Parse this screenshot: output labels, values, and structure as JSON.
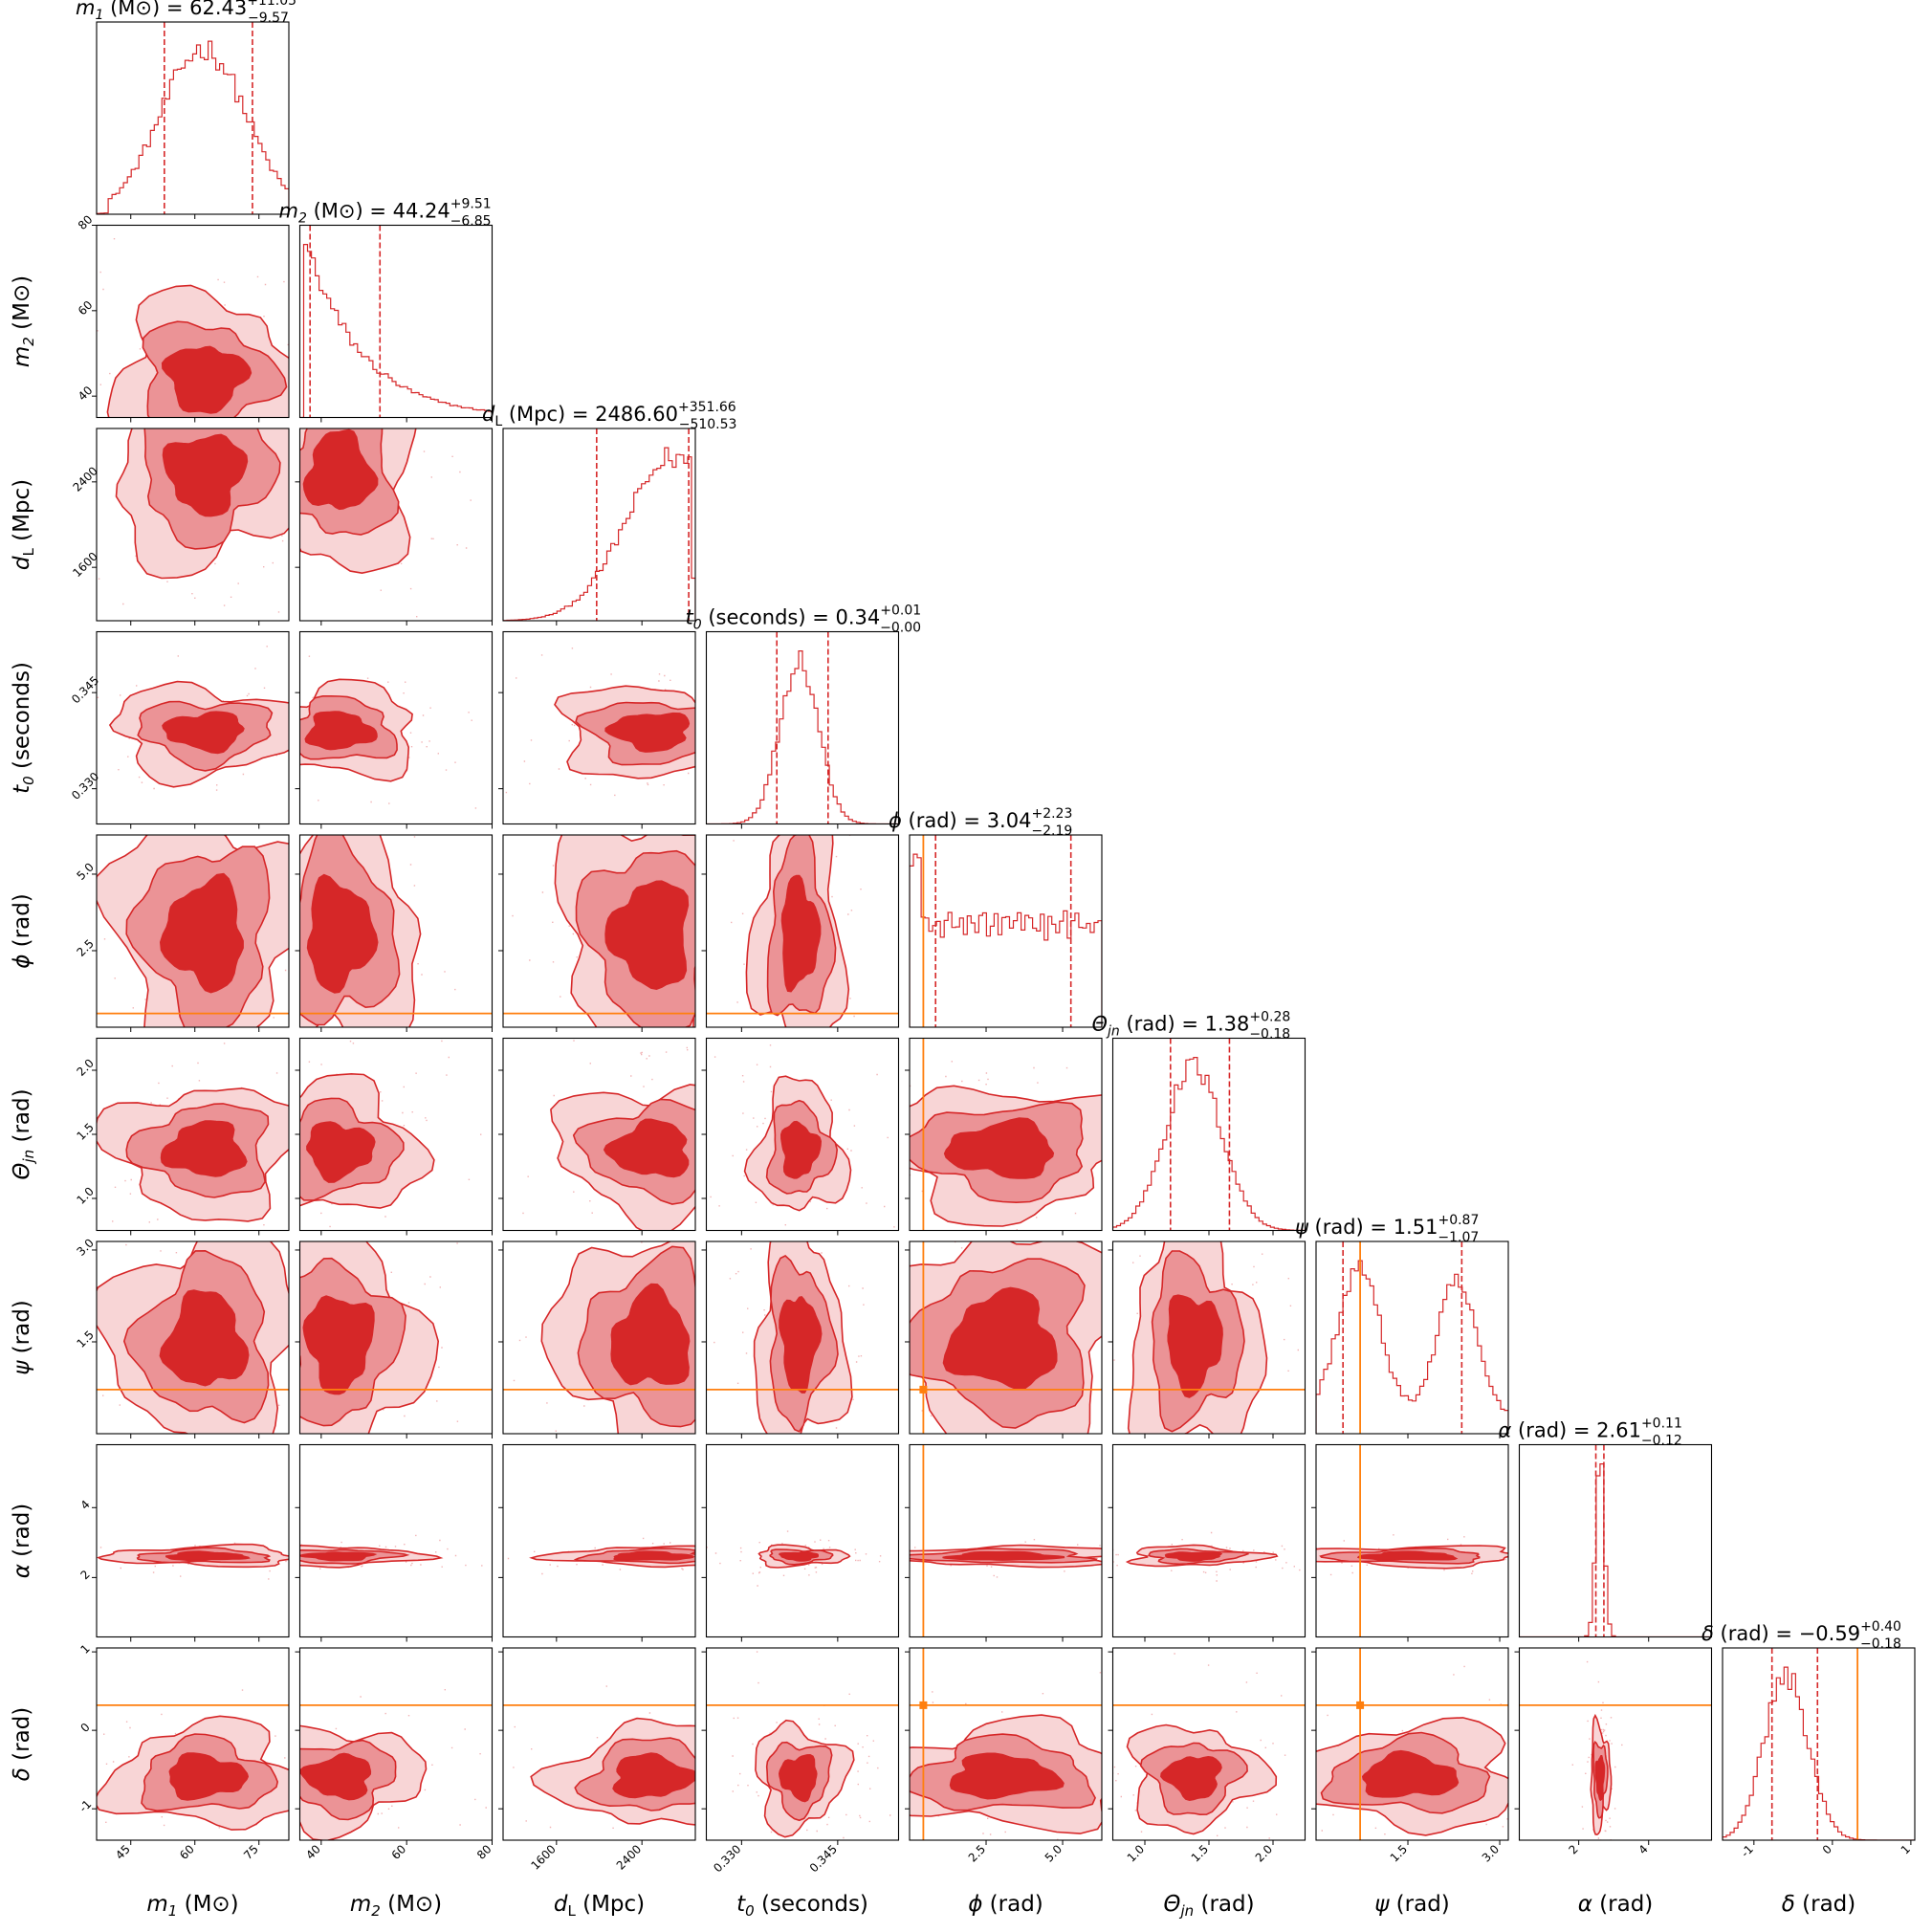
{
  "chart_data": {
    "type": "corner",
    "colors": {
      "posterior": "#d62728",
      "inner": "#d62728",
      "outer": "#eb9396",
      "outermost": "#f8d5d6",
      "truth": "#ff7f0e"
    },
    "parameters": [
      {
        "key": "m1",
        "sym": "m",
        "sub": "1",
        "unit": "(M⊙)",
        "median": "62.43",
        "plus": "+11.05",
        "minus": "−9.57",
        "range": [
          37,
          82
        ],
        "ticks": [
          45,
          60,
          75
        ],
        "lo": 52.86,
        "hi": 73.48,
        "mean": 62.43,
        "sd": 9.5,
        "truth": null
      },
      {
        "key": "m2",
        "sym": "m",
        "sub": "2",
        "unit": "(M⊙)",
        "median": "44.24",
        "plus": "+9.51",
        "minus": "−6.85",
        "range": [
          35,
          80
        ],
        "ticks": [
          40,
          60,
          80
        ],
        "lo": 37.39,
        "hi": 53.75,
        "mean": 44.24,
        "sd": 8,
        "truth": null
      },
      {
        "key": "dL",
        "sym": "d",
        "sub": "L",
        "unit": "(Mpc)",
        "median": "2486.60",
        "plus": "+351.66",
        "minus": "−510.53",
        "range": [
          1100,
          2900
        ],
        "ticks": [
          1600,
          2400
        ],
        "lo": 1976.07,
        "hi": 2838.26,
        "mean": 2486.6,
        "sd": 380,
        "truth": null
      },
      {
        "key": "t0",
        "sym": "t",
        "sub": "0",
        "unit": "(seconds)",
        "median": "0.34",
        "plus": "+0.01",
        "minus": "−0.00",
        "range": [
          0.3245,
          0.3545
        ],
        "ticks": [
          0.33,
          0.345
        ],
        "tickLabels": [
          "0.330",
          "0.345"
        ],
        "lo": 0.3355,
        "hi": 0.3435,
        "mean": 0.339,
        "sd": 0.003,
        "truth": null
      },
      {
        "key": "phi",
        "sym": "ϕ",
        "sub": "",
        "unit": "(rad)",
        "median": "3.04",
        "plus": "+2.23",
        "minus": "−2.19",
        "range": [
          0,
          6.28
        ],
        "ticks": [
          2.5,
          5.0
        ],
        "tickLabels": [
          "2.5",
          "5.0"
        ],
        "lo": 0.85,
        "hi": 5.27,
        "mean": 3.04,
        "sd": 1.8,
        "truth": 0.45
      },
      {
        "key": "theta",
        "sym": "Θ",
        "sub": "jn",
        "unit": "(rad)",
        "median": "1.38",
        "plus": "+0.28",
        "minus": "−0.18",
        "range": [
          0.75,
          2.25
        ],
        "ticks": [
          1.0,
          1.5,
          2.0
        ],
        "tickLabels": [
          "1.0",
          "1.5",
          "2.0"
        ],
        "lo": 1.2,
        "hi": 1.66,
        "mean": 1.38,
        "sd": 0.22,
        "truth": null
      },
      {
        "key": "psi",
        "sym": "ψ",
        "sub": "",
        "unit": "(rad)",
        "median": "1.51",
        "plus": "+0.87",
        "minus": "−1.07",
        "range": [
          0,
          3.14
        ],
        "ticks": [
          1.5,
          3.0
        ],
        "tickLabels": [
          "1.5",
          "3.0"
        ],
        "lo": 0.44,
        "hi": 2.38,
        "mean": 1.51,
        "sd": 0.8,
        "truth": 0.72
      },
      {
        "key": "alpha",
        "sym": "α",
        "sub": "",
        "unit": "(rad)",
        "median": "2.61",
        "plus": "+0.11",
        "minus": "−0.12",
        "range": [
          0.3,
          5.8
        ],
        "ticks": [
          2,
          4
        ],
        "lo": 2.49,
        "hi": 2.72,
        "mean": 2.61,
        "sd": 0.12,
        "truth": null
      },
      {
        "key": "delta",
        "sym": "δ",
        "sub": "",
        "unit": "(rad)",
        "median": "−0.59",
        "plus": "+0.40",
        "minus": "−0.18",
        "range": [
          -1.4,
          1.05
        ],
        "ticks": [
          -1,
          0,
          1
        ],
        "lo": -0.77,
        "hi": -0.19,
        "mean": -0.59,
        "sd": 0.28,
        "truth": 0.32
      }
    ]
  }
}
